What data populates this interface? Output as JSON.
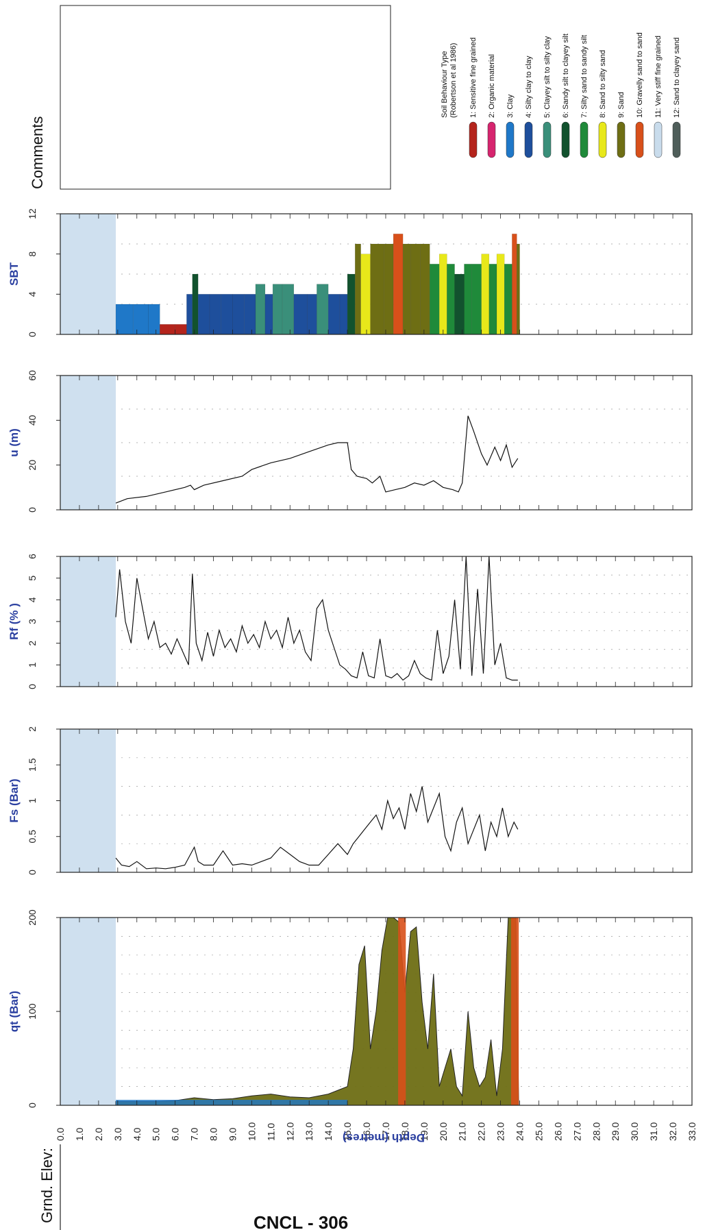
{
  "comments_label": "Comments",
  "ground_label": "Grnd. Elev:",
  "title_fragment": "CNCL - 306",
  "legend": {
    "title": "Soil Behaviour Type\n(Robertson et al 1986)",
    "items": [
      {
        "label": "1: Sensitive fine grained",
        "color": "#b4241c"
      },
      {
        "label": "2: Organic material",
        "color": "#d6246e"
      },
      {
        "label": "3: Clay",
        "color": "#1f78c8"
      },
      {
        "label": "4: Silty clay to clay",
        "color": "#1e4f9c"
      },
      {
        "label": "5: Clayey silt to silty clay",
        "color": "#3a8f7a"
      },
      {
        "label": "6: Sandy silt to clayey silt",
        "color": "#12522e"
      },
      {
        "label": "7: Silty sand to sandy silt",
        "color": "#1f8a3a"
      },
      {
        "label": "8: Sand to silty sand",
        "color": "#e8e81a"
      },
      {
        "label": "9: Sand",
        "color": "#6e6e14"
      },
      {
        "label": "10: Gravelly sand to sand",
        "color": "#d8501a"
      },
      {
        "label": "11: Very stiff fine grained",
        "color": "#c9dcec"
      },
      {
        "label": "12: Sand to clayey sand",
        "color": "#4f5e5a"
      }
    ]
  },
  "chart_data": [
    {
      "type": "bar",
      "ylabel": "SBT",
      "ylim": [
        0,
        12
      ],
      "yticks": [
        "0",
        "4",
        "8",
        "12"
      ],
      "x": [
        2.9,
        3.8,
        4.6,
        5.2,
        6.0,
        6.6,
        6.9,
        7.2,
        7.8,
        8.4,
        9.0,
        9.6,
        10.2,
        10.7,
        11.1,
        11.6,
        12.2,
        12.9,
        13.4,
        14.0,
        14.6,
        15.0,
        15.4,
        15.7,
        16.2,
        16.9,
        17.4,
        17.9,
        18.3,
        18.8,
        19.3,
        19.8,
        20.2,
        20.6,
        21.1,
        21.5,
        22.0,
        22.4,
        22.8,
        23.2,
        23.6,
        23.85
      ],
      "values": [
        3,
        3,
        3,
        1,
        1,
        4,
        6,
        4,
        4,
        4,
        4,
        4,
        5,
        4,
        5,
        5,
        4,
        4,
        5,
        4,
        4,
        6,
        9,
        8,
        9,
        9,
        10,
        9,
        9,
        9,
        7,
        8,
        7,
        6,
        7,
        7,
        8,
        7,
        8,
        7,
        10,
        9
      ]
    },
    {
      "type": "line",
      "ylabel": "u (m)",
      "ylim": [
        0,
        60
      ],
      "yticks": [
        "0",
        "20",
        "40",
        "60"
      ],
      "x": [
        2.9,
        3.5,
        4.5,
        5.5,
        6.5,
        6.8,
        7.0,
        7.5,
        8.5,
        9.5,
        10.0,
        11.0,
        12.0,
        13.0,
        14.0,
        14.5,
        15.0,
        15.2,
        15.5,
        16.0,
        16.3,
        16.7,
        17.0,
        17.5,
        18.0,
        18.5,
        19.0,
        19.5,
        20.0,
        20.5,
        20.8,
        21.0,
        21.3,
        21.6,
        22.0,
        22.3,
        22.7,
        23.0,
        23.3,
        23.6,
        23.9
      ],
      "values": [
        3,
        5,
        6,
        8,
        10,
        11,
        9,
        11,
        13,
        15,
        18,
        21,
        23,
        26,
        29,
        30,
        30,
        18,
        15,
        14,
        12,
        15,
        8,
        9,
        10,
        12,
        11,
        13,
        10,
        9,
        8,
        12,
        42,
        35,
        25,
        20,
        28,
        22,
        29,
        19,
        23
      ]
    },
    {
      "type": "line",
      "ylabel": "Rf (% )",
      "ylim": [
        0,
        6
      ],
      "yticks": [
        "0",
        "1",
        "2",
        "3",
        "4",
        "5",
        "6"
      ],
      "x": [
        2.9,
        3.1,
        3.4,
        3.7,
        4.0,
        4.3,
        4.6,
        4.9,
        5.2,
        5.5,
        5.8,
        6.1,
        6.4,
        6.7,
        6.9,
        7.1,
        7.4,
        7.7,
        8.0,
        8.3,
        8.6,
        8.9,
        9.2,
        9.5,
        9.8,
        10.1,
        10.4,
        10.7,
        11.0,
        11.3,
        11.6,
        11.9,
        12.2,
        12.5,
        12.8,
        13.1,
        13.4,
        13.7,
        14.0,
        14.3,
        14.6,
        14.9,
        15.2,
        15.5,
        15.8,
        16.1,
        16.4,
        16.7,
        17.0,
        17.3,
        17.6,
        17.9,
        18.2,
        18.5,
        18.8,
        19.1,
        19.4,
        19.7,
        20.0,
        20.3,
        20.6,
        20.9,
        21.2,
        21.5,
        21.8,
        22.1,
        22.4,
        22.7,
        23.0,
        23.3,
        23.6,
        23.9
      ],
      "values": [
        3.2,
        5.4,
        3.0,
        2.0,
        5.0,
        3.6,
        2.2,
        3.0,
        1.8,
        2.0,
        1.5,
        2.2,
        1.6,
        1.0,
        5.2,
        2.0,
        1.2,
        2.5,
        1.4,
        2.6,
        1.8,
        2.2,
        1.6,
        2.8,
        2.0,
        2.4,
        1.8,
        3.0,
        2.2,
        2.6,
        1.8,
        3.2,
        2.0,
        2.6,
        1.6,
        1.2,
        3.6,
        4.0,
        2.6,
        1.8,
        1.0,
        0.8,
        0.5,
        0.4,
        1.6,
        0.5,
        0.4,
        2.2,
        0.5,
        0.4,
        0.6,
        0.3,
        0.5,
        1.2,
        0.6,
        0.4,
        0.3,
        2.6,
        0.6,
        1.4,
        4.0,
        0.8,
        6.0,
        0.5,
        4.5,
        0.6,
        6.0,
        1.0,
        2.0,
        0.4,
        0.3,
        0.3
      ]
    },
    {
      "type": "line",
      "ylabel": "Fs (Bar)",
      "ylim": [
        0,
        2
      ],
      "yticks": [
        "0",
        "0.5",
        "1",
        "1.5",
        "2"
      ],
      "x": [
        2.9,
        3.2,
        3.6,
        4.0,
        4.5,
        5.0,
        5.5,
        6.0,
        6.5,
        7.0,
        7.2,
        7.5,
        8.0,
        8.5,
        9.0,
        9.5,
        10.0,
        10.5,
        11.0,
        11.5,
        12.0,
        12.5,
        13.0,
        13.5,
        14.0,
        14.5,
        15.0,
        15.3,
        15.6,
        15.9,
        16.2,
        16.5,
        16.8,
        17.1,
        17.4,
        17.7,
        18.0,
        18.3,
        18.6,
        18.9,
        19.2,
        19.5,
        19.8,
        20.1,
        20.4,
        20.7,
        21.0,
        21.3,
        21.6,
        21.9,
        22.2,
        22.5,
        22.8,
        23.1,
        23.4,
        23.7,
        23.9
      ],
      "values": [
        0.2,
        0.1,
        0.08,
        0.15,
        0.05,
        0.06,
        0.05,
        0.07,
        0.1,
        0.35,
        0.15,
        0.1,
        0.1,
        0.3,
        0.1,
        0.12,
        0.1,
        0.15,
        0.2,
        0.35,
        0.25,
        0.15,
        0.1,
        0.1,
        0.25,
        0.4,
        0.25,
        0.4,
        0.5,
        0.6,
        0.7,
        0.8,
        0.6,
        1.0,
        0.75,
        0.9,
        0.6,
        1.1,
        0.85,
        1.2,
        0.7,
        0.9,
        1.1,
        0.5,
        0.3,
        0.7,
        0.9,
        0.4,
        0.6,
        0.8,
        0.3,
        0.7,
        0.5,
        0.9,
        0.5,
        0.7,
        0.6
      ]
    },
    {
      "type": "area",
      "ylabel": "qt (Bar)",
      "ylim": [
        0,
        200
      ],
      "yticks": [
        "0",
        "100",
        "200"
      ],
      "x": [
        2.9,
        4.0,
        5.0,
        6.0,
        7.0,
        8.0,
        9.0,
        10.0,
        11.0,
        12.0,
        13.0,
        14.0,
        15.0,
        15.3,
        15.6,
        15.9,
        16.2,
        16.5,
        16.8,
        17.1,
        17.4,
        17.7,
        18.0,
        18.3,
        18.6,
        18.9,
        19.2,
        19.5,
        19.8,
        20.1,
        20.4,
        20.7,
        21.0,
        21.3,
        21.6,
        21.9,
        22.2,
        22.5,
        22.8,
        23.1,
        23.4,
        23.6,
        23.8,
        23.95
      ],
      "values": [
        4,
        4,
        4,
        5,
        8,
        6,
        7,
        10,
        12,
        9,
        8,
        12,
        20,
        60,
        150,
        170,
        60,
        100,
        165,
        200,
        200,
        195,
        120,
        185,
        190,
        110,
        60,
        140,
        20,
        40,
        60,
        20,
        10,
        100,
        40,
        20,
        30,
        70,
        10,
        60,
        200,
        200,
        200,
        0
      ]
    }
  ],
  "depth_axis": {
    "label": "Depth (metres)",
    "ticks": [
      "0.0",
      "1.0",
      "2.0",
      "3.0",
      "4.0",
      "5.0",
      "6.0",
      "7.0",
      "8.0",
      "9.0",
      "10.0",
      "11.0",
      "12.0",
      "13.0",
      "14.0",
      "15.0",
      "16.0",
      "17.0",
      "18.0",
      "19.0",
      "20.0",
      "21.0",
      "22.0",
      "23.0",
      "24.0",
      "25.0",
      "26.0",
      "27.0",
      "28.0",
      "29.0",
      "30.0",
      "31.0",
      "32.0",
      "33.0"
    ],
    "range": [
      0,
      33
    ],
    "predrill_depth": 2.9
  }
}
